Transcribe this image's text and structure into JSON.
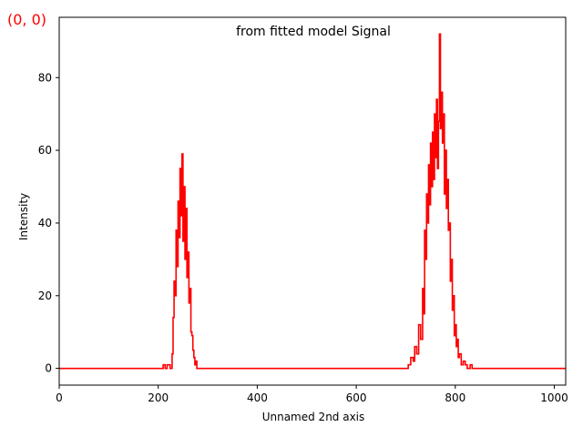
{
  "corner_label": "(0, 0)",
  "chart_data": {
    "type": "line",
    "title": "from fitted model Signal",
    "xlabel": "Unnamed 2nd axis",
    "ylabel": "Intensity",
    "xlim": [
      0,
      1023
    ],
    "ylim": [
      -4.6,
      96.6
    ],
    "xticks": [
      0,
      200,
      400,
      600,
      800,
      1000
    ],
    "yticks": [
      0,
      20,
      40,
      60,
      80
    ],
    "grid": false,
    "line_color": "#ff0000",
    "drawstyle": "steps",
    "series": [
      {
        "points": [
          [
            0,
            0
          ],
          [
            200,
            0
          ],
          [
            210,
            1
          ],
          [
            214,
            0
          ],
          [
            218,
            1
          ],
          [
            224,
            0
          ],
          [
            228,
            4
          ],
          [
            230,
            14
          ],
          [
            232,
            24
          ],
          [
            234,
            20
          ],
          [
            236,
            38
          ],
          [
            238,
            28
          ],
          [
            240,
            46
          ],
          [
            242,
            36
          ],
          [
            244,
            55
          ],
          [
            246,
            42
          ],
          [
            248,
            59
          ],
          [
            250,
            35
          ],
          [
            252,
            50
          ],
          [
            254,
            30
          ],
          [
            256,
            44
          ],
          [
            258,
            25
          ],
          [
            260,
            32
          ],
          [
            262,
            18
          ],
          [
            264,
            22
          ],
          [
            266,
            10
          ],
          [
            268,
            9
          ],
          [
            270,
            5
          ],
          [
            272,
            3
          ],
          [
            274,
            1
          ],
          [
            276,
            2
          ],
          [
            278,
            0
          ],
          [
            700,
            0
          ],
          [
            705,
            1
          ],
          [
            710,
            3
          ],
          [
            715,
            2
          ],
          [
            718,
            6
          ],
          [
            722,
            4
          ],
          [
            726,
            12
          ],
          [
            730,
            8
          ],
          [
            734,
            22
          ],
          [
            736,
            15
          ],
          [
            738,
            38
          ],
          [
            740,
            30
          ],
          [
            742,
            48
          ],
          [
            744,
            40
          ],
          [
            746,
            56
          ],
          [
            748,
            45
          ],
          [
            750,
            62
          ],
          [
            752,
            50
          ],
          [
            754,
            65
          ],
          [
            756,
            52
          ],
          [
            758,
            70
          ],
          [
            760,
            58
          ],
          [
            762,
            74
          ],
          [
            764,
            55
          ],
          [
            766,
            68
          ],
          [
            768,
            92
          ],
          [
            770,
            66
          ],
          [
            772,
            76
          ],
          [
            774,
            62
          ],
          [
            776,
            70
          ],
          [
            778,
            48
          ],
          [
            780,
            60
          ],
          [
            782,
            44
          ],
          [
            784,
            52
          ],
          [
            786,
            38
          ],
          [
            788,
            40
          ],
          [
            790,
            24
          ],
          [
            792,
            30
          ],
          [
            794,
            16
          ],
          [
            796,
            20
          ],
          [
            798,
            9
          ],
          [
            800,
            12
          ],
          [
            802,
            6
          ],
          [
            804,
            8
          ],
          [
            806,
            3
          ],
          [
            808,
            4
          ],
          [
            812,
            1
          ],
          [
            816,
            2
          ],
          [
            820,
            1
          ],
          [
            824,
            0
          ],
          [
            830,
            1
          ],
          [
            834,
            0
          ],
          [
            1023,
            0
          ]
        ]
      }
    ]
  }
}
